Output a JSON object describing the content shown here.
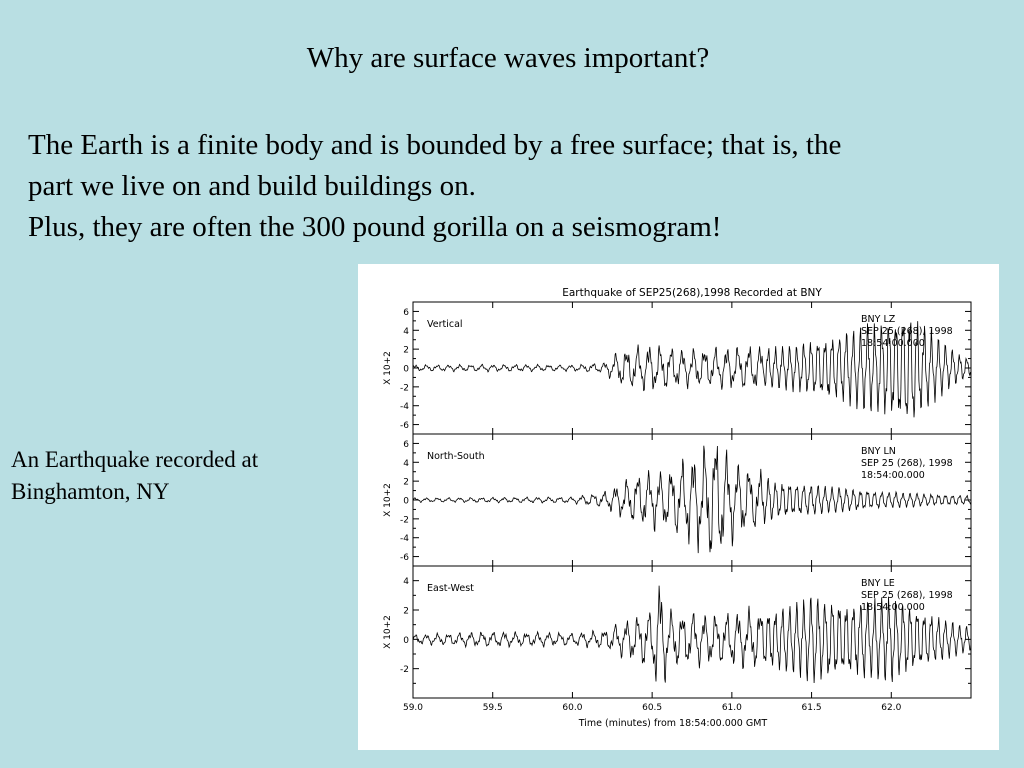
{
  "slide": {
    "heading": "Why are surface waves important?",
    "body_lines": [
      "The Earth is a finite body and is bounded by a free surface; that is, the",
      "part we live on and build buildings on.",
      "Plus, they are often the 300 pound gorilla on a seismogram!"
    ],
    "caption_lines": [
      "An Earthquake recorded at",
      "Binghamton, NY"
    ]
  },
  "chart_data": {
    "type": "line",
    "title": "Earthquake of SEP25(268),1998 Recorded at BNY",
    "xlabel": "Time (minutes) from 18:54:00.000 GMT",
    "xlim": [
      59.0,
      62.5
    ],
    "x_ticks": [
      59.0,
      59.5,
      60.0,
      60.5,
      61.0,
      61.5,
      62.0
    ],
    "x_tick_labels": [
      "59.0",
      "59.5",
      "60.0",
      "60.5",
      "61.0",
      "61.5",
      "62.0"
    ],
    "panels": [
      {
        "name": "Vertical",
        "ylabel": "X 10+2",
        "ylim": [
          -7,
          7
        ],
        "y_ticks": [
          6,
          4,
          2,
          0,
          -2,
          -4,
          -6
        ],
        "info": [
          "BNY LZ",
          "SEP 25 (268), 1998",
          "18:54:00.000"
        ],
        "amplitude_envelope": [
          [
            59.0,
            0.3
          ],
          [
            59.5,
            0.35
          ],
          [
            60.0,
            0.3
          ],
          [
            60.2,
            0.5
          ],
          [
            60.3,
            1.8
          ],
          [
            60.5,
            2.4
          ],
          [
            60.7,
            1.8
          ],
          [
            60.9,
            2.0
          ],
          [
            61.2,
            2.2
          ],
          [
            61.4,
            2.6
          ],
          [
            61.6,
            3.5
          ],
          [
            61.8,
            4.5
          ],
          [
            62.0,
            5.5
          ],
          [
            62.1,
            6.5
          ],
          [
            62.2,
            5.0
          ],
          [
            62.35,
            2.5
          ],
          [
            62.5,
            0.8
          ]
        ]
      },
      {
        "name": "North-South",
        "ylabel": "X 10+2",
        "ylim": [
          -7,
          7
        ],
        "y_ticks": [
          6,
          4,
          2,
          0,
          -2,
          -4,
          -6
        ],
        "info": [
          "BNY LN",
          "SEP 25 (268), 1998",
          "18:54:00.000"
        ],
        "amplitude_envelope": [
          [
            59.0,
            0.2
          ],
          [
            59.5,
            0.25
          ],
          [
            60.0,
            0.3
          ],
          [
            60.2,
            0.8
          ],
          [
            60.4,
            2.5
          ],
          [
            60.6,
            3.0
          ],
          [
            60.8,
            5.0
          ],
          [
            60.9,
            6.5
          ],
          [
            61.0,
            4.0
          ],
          [
            61.3,
            2.0
          ],
          [
            61.6,
            1.5
          ],
          [
            61.9,
            1.0
          ],
          [
            62.2,
            0.7
          ],
          [
            62.5,
            0.5
          ]
        ]
      },
      {
        "name": "East-West",
        "ylabel": "X 10+2",
        "ylim": [
          -4,
          5
        ],
        "y_ticks": [
          4,
          2,
          0,
          -2
        ],
        "info": [
          "BNY LE",
          "SEP 25 (268), 1998",
          "18:54:00.000"
        ],
        "amplitude_envelope": [
          [
            59.0,
            0.3
          ],
          [
            59.5,
            0.5
          ],
          [
            60.0,
            0.4
          ],
          [
            60.2,
            0.6
          ],
          [
            60.4,
            1.5
          ],
          [
            60.5,
            2.0
          ],
          [
            60.55,
            4.0
          ],
          [
            60.6,
            1.8
          ],
          [
            60.9,
            1.6
          ],
          [
            61.2,
            2.0
          ],
          [
            61.4,
            2.5
          ],
          [
            61.5,
            3.2
          ],
          [
            61.7,
            2.6
          ],
          [
            62.0,
            3.0
          ],
          [
            62.2,
            2.0
          ],
          [
            62.5,
            0.8
          ]
        ]
      }
    ]
  }
}
